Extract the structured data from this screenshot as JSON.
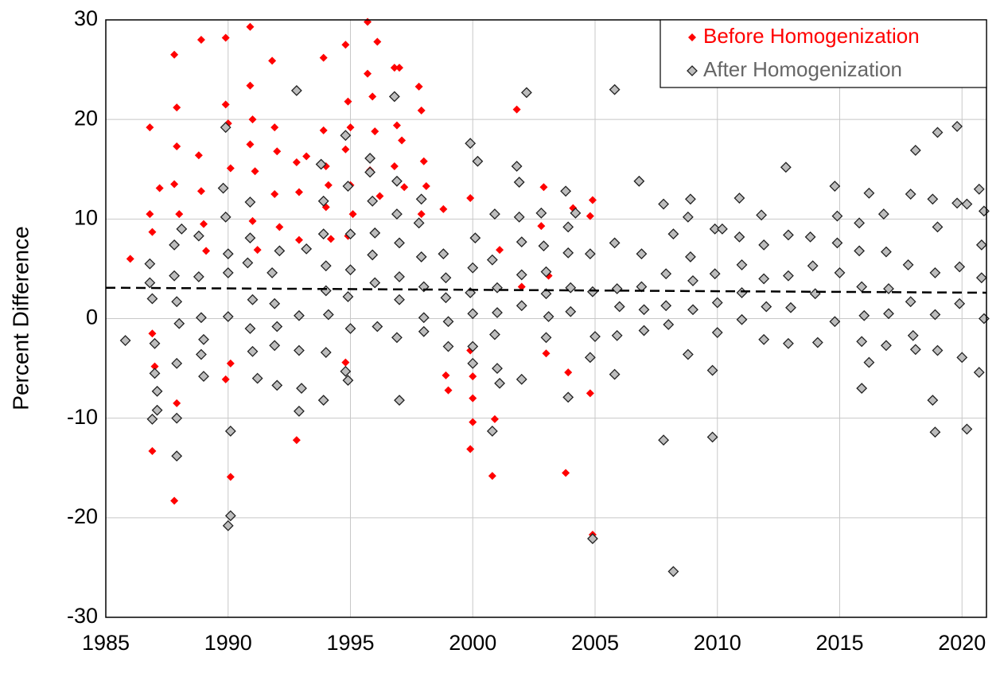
{
  "chart_data": {
    "type": "scatter",
    "y_label": "Percent Difference",
    "xlim": [
      1985,
      2021
    ],
    "xticks": [
      1985,
      1990,
      1995,
      2000,
      2005,
      2010,
      2015,
      2020
    ],
    "ylim": [
      -30,
      30
    ],
    "yticks": [
      -30,
      -20,
      -10,
      0,
      10,
      20,
      30
    ],
    "grid": true,
    "legend": "upper right",
    "series": [
      {
        "name": "Before Homogenization",
        "color": "#ff0000",
        "marker": "filled-diamond",
        "x": [
          1986.0,
          1986.8,
          1986.8,
          1986.9,
          1986.9,
          1987.0,
          1986.9,
          1987.2,
          1987.8,
          1987.9,
          1987.9,
          1987.8,
          1988.0,
          1987.9,
          1987.8,
          1988.9,
          1988.8,
          1988.9,
          1989.0,
          1989.1,
          1989.9,
          1989.9,
          1990.0,
          1990.1,
          1989.9,
          1990.1,
          1990.1,
          1990.9,
          1990.9,
          1991.0,
          1990.9,
          1991.1,
          1991.0,
          1991.2,
          1991.8,
          1991.9,
          1992.0,
          1991.9,
          1992.1,
          1992.8,
          1992.9,
          1992.9,
          1992.8,
          1993.2,
          1993.9,
          1993.9,
          1994.0,
          1994.1,
          1994.0,
          1994.2,
          1994.8,
          1994.9,
          1995.0,
          1994.8,
          1995.0,
          1995.1,
          1994.9,
          1994.8,
          1995.7,
          1995.7,
          1995.9,
          1996.1,
          1996.0,
          1995.8,
          1996.2,
          1996.8,
          1997.0,
          1996.9,
          1997.1,
          1996.8,
          1997.2,
          1997.8,
          1997.9,
          1998.0,
          1998.1,
          1997.9,
          1998.8,
          1998.9,
          1999.0,
          1999.9,
          1999.9,
          2000.0,
          2000.0,
          2000.0,
          1999.9,
          2000.8,
          2000.9,
          2001.1,
          2001.8,
          2002.0,
          2002.9,
          2002.8,
          2003.1,
          2003.0,
          2003.8,
          2003.9,
          2004.1,
          2004.9,
          2004.8,
          2004.8,
          2004.9
        ],
        "values": [
          6,
          19.2,
          10.5,
          8.7,
          -1.5,
          -4.8,
          -13.3,
          13.1,
          26.5,
          21.2,
          17.3,
          13.5,
          10.5,
          -8.5,
          -18.3,
          28,
          16.4,
          12.8,
          9.5,
          6.8,
          28.2,
          21.5,
          19.6,
          15.1,
          -6.1,
          -15.9,
          -4.5,
          29.3,
          23.4,
          20,
          17.5,
          14.8,
          9.8,
          6.9,
          25.9,
          19.2,
          16.8,
          12.5,
          9.2,
          15.7,
          12.7,
          7.9,
          -12.2,
          16.3,
          26.2,
          18.9,
          15.3,
          13.4,
          11.2,
          8,
          27.5,
          21.8,
          19.2,
          17,
          13.4,
          10.5,
          8.3,
          -4.4,
          29.8,
          24.6,
          22.3,
          27.8,
          18.8,
          14.9,
          12.3,
          25.2,
          25.2,
          19.4,
          17.9,
          15.3,
          13.2,
          23.3,
          20.9,
          15.8,
          13.3,
          10.5,
          11,
          -5.7,
          -7.2,
          12.1,
          -3.2,
          -5.8,
          -8,
          -10.4,
          -13.1,
          -15.8,
          -10.1,
          6.9,
          21,
          3.2,
          13.2,
          9.3,
          4.3,
          -3.5,
          -15.5,
          -5.4,
          11.1,
          11.9,
          10.3,
          -7.5,
          -21.7
        ]
      },
      {
        "name": "After Homogenization",
        "color": "#bdbdbd",
        "edge_color": "#222222",
        "text_color": "#666666",
        "marker": "open-diamond",
        "x": [
          1985.8,
          1986.8,
          1986.8,
          1986.9,
          1987.0,
          1987.0,
          1986.9,
          1987.1,
          1987.1,
          1987.8,
          1987.8,
          1987.9,
          1988.0,
          1987.9,
          1987.9,
          1987.9,
          1988.1,
          1988.8,
          1988.8,
          1988.9,
          1989.0,
          1988.9,
          1989.0,
          1989.9,
          1989.8,
          1989.9,
          1990.0,
          1990.0,
          1990.0,
          1990.1,
          1990.1,
          1990.0,
          1990.9,
          1990.9,
          1990.8,
          1991.0,
          1990.9,
          1991.0,
          1991.2,
          1991.8,
          1991.9,
          1992.0,
          1991.9,
          1992.0,
          1992.1,
          1992.8,
          1992.9,
          1992.9,
          1993.0,
          1992.9,
          1993.2,
          1993.8,
          1993.9,
          1993.9,
          1994.0,
          1994.0,
          1994.1,
          1994.0,
          1993.9,
          1994.8,
          1994.9,
          1995.0,
          1995.0,
          1994.9,
          1995.0,
          1994.8,
          1994.9,
          1995.8,
          1995.8,
          1995.9,
          1996.0,
          1995.9,
          1996.0,
          1996.1,
          1996.8,
          1996.9,
          1996.9,
          1997.0,
          1997.0,
          1997.0,
          1996.9,
          1997.0,
          1997.9,
          1997.8,
          1997.9,
          1998.0,
          1998.0,
          1998.0,
          1998.8,
          1998.9,
          1998.9,
          1999.0,
          1999.0,
          1999.9,
          2000.2,
          2000.1,
          2000.0,
          1999.9,
          2000.0,
          2000.0,
          2000.0,
          2000.9,
          2000.8,
          2001.0,
          2001.0,
          2000.9,
          2001.0,
          2000.8,
          2001.1,
          2001.8,
          2001.9,
          2001.9,
          2002.0,
          2002.0,
          2002.0,
          2002.0,
          2002.2,
          2002.8,
          2002.9,
          2003.0,
          2003.0,
          2003.1,
          2003.0,
          2003.8,
          2003.9,
          2003.9,
          2004.0,
          2004.0,
          2003.9,
          2004.2,
          2004.8,
          2004.9,
          2005.0,
          2004.8,
          2004.9,
          2005.8,
          2005.8,
          2005.9,
          2006.0,
          2005.9,
          2005.8,
          2006.8,
          2006.9,
          2006.9,
          2007.0,
          2007.0,
          2007.8,
          2007.8,
          2007.9,
          2007.9,
          2008.0,
          2008.2,
          2008.2,
          2008.8,
          2008.9,
          2008.9,
          2009.0,
          2009.0,
          2008.8,
          2009.8,
          2009.8,
          2009.9,
          2010.2,
          2009.9,
          2010.0,
          2010.0,
          2010.9,
          2010.9,
          2011.0,
          2011.0,
          2011.0,
          2011.8,
          2011.9,
          2011.9,
          2012.0,
          2011.9,
          2012.8,
          2012.9,
          2012.9,
          2013.0,
          2012.9,
          2013.8,
          2013.9,
          2014.0,
          2014.1,
          2014.8,
          2014.9,
          2014.9,
          2015.0,
          2014.8,
          2015.8,
          2015.8,
          2015.9,
          2016.0,
          2015.9,
          2015.9,
          2016.2,
          2016.2,
          2016.8,
          2016.9,
          2017.0,
          2017.0,
          2016.9,
          2017.9,
          2018.1,
          2017.8,
          2017.9,
          2018.0,
          2018.1,
          2018.8,
          2019.0,
          2019.0,
          2018.9,
          2018.9,
          2019.0,
          2018.8,
          2018.9,
          2019.8,
          2019.8,
          2019.9,
          2019.9,
          2020.0,
          2020.2,
          2020.2,
          2020.7,
          2020.8,
          2020.8,
          2020.9,
          2020.7,
          2020.9
        ],
        "values": [
          -2.2,
          5.5,
          3.6,
          2,
          -2.5,
          -5.5,
          -10.1,
          -7.3,
          -9.2,
          7.4,
          4.3,
          1.7,
          -0.5,
          -4.5,
          -10,
          -13.8,
          9,
          8.3,
          4.2,
          0.1,
          -2.1,
          -3.6,
          -5.8,
          19.2,
          13.1,
          10.2,
          6.5,
          4.6,
          0.2,
          -11.3,
          -19.8,
          -20.8,
          11.7,
          8.1,
          5.6,
          1.9,
          -1,
          -3.3,
          -6,
          4.6,
          1.5,
          -0.8,
          -2.7,
          -6.7,
          6.8,
          22.9,
          0.3,
          -3.2,
          -7,
          -9.3,
          7,
          15.5,
          11.8,
          8.5,
          5.3,
          2.8,
          0.4,
          -3.4,
          -8.2,
          18.4,
          13.3,
          8.5,
          4.9,
          2.2,
          -1,
          -5.3,
          -6.2,
          16.1,
          14.7,
          11.8,
          8.6,
          6.4,
          3.6,
          -0.8,
          22.3,
          13.8,
          10.5,
          7.6,
          4.2,
          1.9,
          -1.9,
          -8.2,
          12,
          9.6,
          6.2,
          3.2,
          0.1,
          -1.3,
          6.5,
          4.1,
          2.1,
          -0.3,
          -2.8,
          17.6,
          15.8,
          8.1,
          5.1,
          2.6,
          0.5,
          -2.8,
          -4.5,
          10.5,
          5.9,
          3.1,
          0.6,
          -1.6,
          -5,
          -11.3,
          -6.5,
          15.3,
          13.7,
          10.2,
          7.7,
          4.4,
          1.3,
          -6.1,
          22.7,
          10.6,
          7.3,
          4.7,
          2.5,
          0.2,
          -1.9,
          12.8,
          9.2,
          6.6,
          3.1,
          0.7,
          -7.9,
          10.6,
          6.5,
          2.7,
          -1.8,
          -3.9,
          -22.1,
          23,
          7.6,
          3,
          1.2,
          -1.7,
          -5.6,
          13.8,
          6.5,
          3.2,
          0.9,
          -1.2,
          11.5,
          -12.2,
          4.5,
          1.3,
          -0.6,
          -25.4,
          8.5,
          10.2,
          12,
          6.2,
          3.8,
          0.9,
          -3.6,
          -11.9,
          -5.2,
          9,
          9,
          4.5,
          1.6,
          -1.4,
          12.1,
          8.2,
          5.4,
          2.6,
          -0.1,
          10.4,
          7.4,
          4,
          1.2,
          -2.1,
          15.2,
          8.4,
          4.3,
          1.1,
          -2.5,
          8.2,
          5.3,
          2.5,
          -2.4,
          13.3,
          10.3,
          7.6,
          4.6,
          -0.3,
          9.6,
          6.8,
          3.2,
          0.3,
          -2.3,
          -7,
          12.6,
          -4.4,
          10.5,
          6.7,
          3,
          0.5,
          -2.7,
          12.5,
          16.9,
          5.4,
          1.7,
          -1.7,
          -3.1,
          12,
          18.7,
          9.2,
          4.6,
          0.4,
          -3.2,
          -8.2,
          -11.4,
          19.3,
          11.6,
          5.2,
          1.5,
          -3.9,
          -11.1,
          11.5,
          13,
          7.4,
          4.1,
          0,
          -5.4,
          10.8
        ]
      }
    ],
    "trend_line": {
      "x": [
        1985,
        2021
      ],
      "values": [
        3.1,
        2.6
      ],
      "color": "#000000",
      "style": "dashed"
    }
  }
}
